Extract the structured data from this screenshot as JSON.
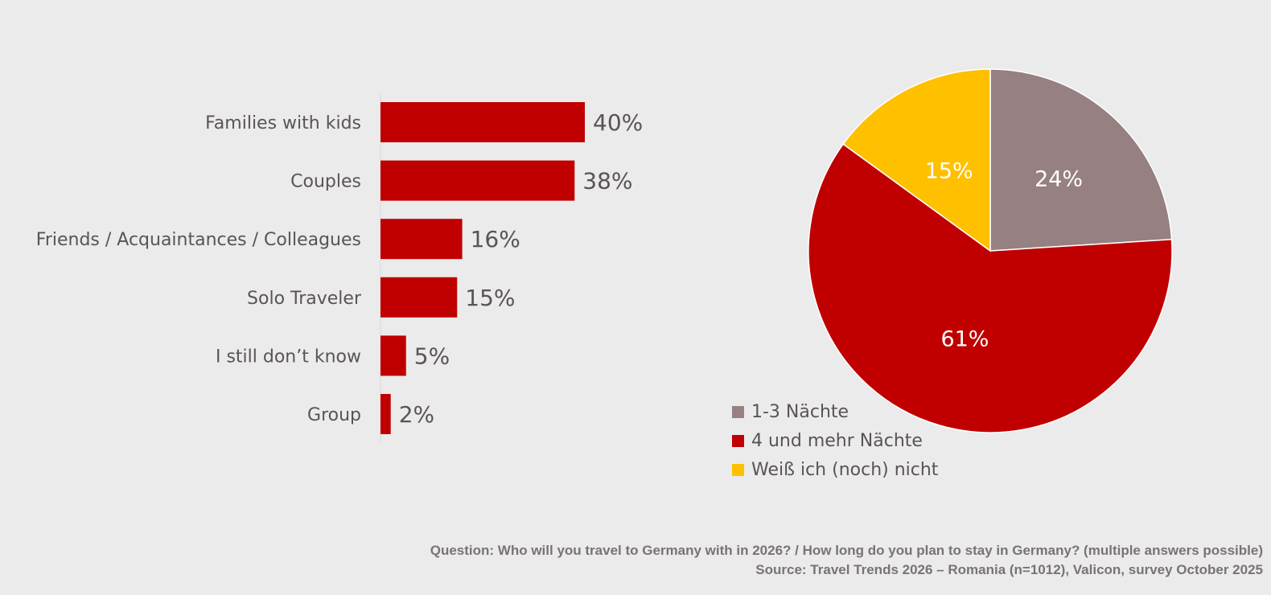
{
  "chart_data": [
    {
      "type": "bar",
      "orientation": "horizontal",
      "categories": [
        "Families with kids",
        "Couples",
        "Friends / Acquaintances / Colleagues",
        "Solo Traveler",
        "I still don’t know",
        "Group"
      ],
      "values": [
        40,
        38,
        16,
        15,
        5,
        2
      ],
      "value_labels": [
        "40%",
        "38%",
        "16%",
        "15%",
        "5%",
        "2%"
      ],
      "value_unit": "%",
      "title": "",
      "xlabel": "",
      "ylabel": "",
      "xlim": [
        0,
        100
      ],
      "grid": false,
      "bar_color": "#c00000"
    },
    {
      "type": "pie",
      "categories": [
        "1-3 Nächte",
        "4 und mehr Nächte",
        "Weiß ich (noch) nicht"
      ],
      "values": [
        24,
        61,
        15
      ],
      "value_labels": [
        "24%",
        "61%",
        "15%"
      ],
      "colors": [
        "#978081",
        "#c00000",
        "#ffc000"
      ],
      "start_angle_deg": 0,
      "direction": "clockwise",
      "legend": {
        "placement": "bottom-left",
        "items": [
          "1-3 Nächte",
          "4 und mehr Nächte",
          "Weiß ich (noch) nicht"
        ]
      },
      "title": ""
    }
  ],
  "footer": {
    "question": "Question: Who will you travel to Germany with in 2026? / How long do you plan to stay in Germany? (multiple answers possible)",
    "source": "Source: Travel Trends 2026 – Romania (n=1012), Valicon, survey October 2025"
  },
  "colors": {
    "background": "#ebebeb",
    "text": "#5b5355",
    "footer_text": "#7a7274"
  }
}
